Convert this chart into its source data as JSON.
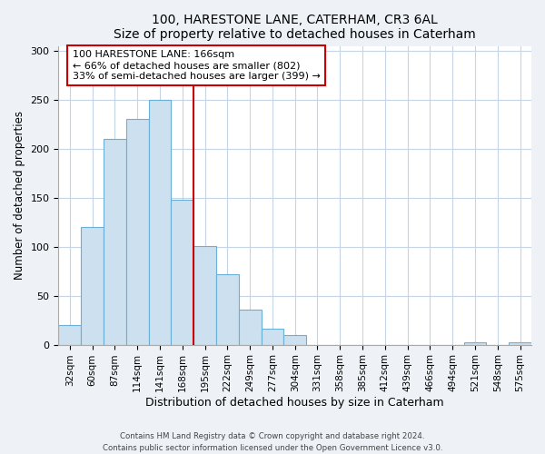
{
  "title": "100, HARESTONE LANE, CATERHAM, CR3 6AL",
  "subtitle": "Size of property relative to detached houses in Caterham",
  "xlabel": "Distribution of detached houses by size in Caterham",
  "ylabel": "Number of detached properties",
  "bin_labels": [
    "32sqm",
    "60sqm",
    "87sqm",
    "114sqm",
    "141sqm",
    "168sqm",
    "195sqm",
    "222sqm",
    "249sqm",
    "277sqm",
    "304sqm",
    "331sqm",
    "358sqm",
    "385sqm",
    "412sqm",
    "439sqm",
    "466sqm",
    "494sqm",
    "521sqm",
    "548sqm",
    "575sqm"
  ],
  "bar_values": [
    20,
    120,
    210,
    230,
    250,
    148,
    101,
    72,
    36,
    16,
    10,
    0,
    0,
    0,
    0,
    0,
    0,
    0,
    2,
    0,
    2
  ],
  "bar_color": "#cce0f0",
  "bar_edge_color": "#6aafd6",
  "highlight_bin_label": "168sqm",
  "highlight_line_color": "#cc0000",
  "annotation_line1": "100 HARESTONE LANE: 166sqm",
  "annotation_line2": "← 66% of detached houses are smaller (802)",
  "annotation_line3": "33% of semi-detached houses are larger (399) →",
  "annotation_box_color": "#ffffff",
  "annotation_box_edge": "#cc0000",
  "ylim": [
    0,
    305
  ],
  "yticks": [
    0,
    50,
    100,
    150,
    200,
    250,
    300
  ],
  "footer_line1": "Contains HM Land Registry data © Crown copyright and database right 2024.",
  "footer_line2": "Contains public sector information licensed under the Open Government Licence v3.0.",
  "background_color": "#eef2f7",
  "plot_bg_color": "#ffffff",
  "grid_color": "#c5d5e5"
}
